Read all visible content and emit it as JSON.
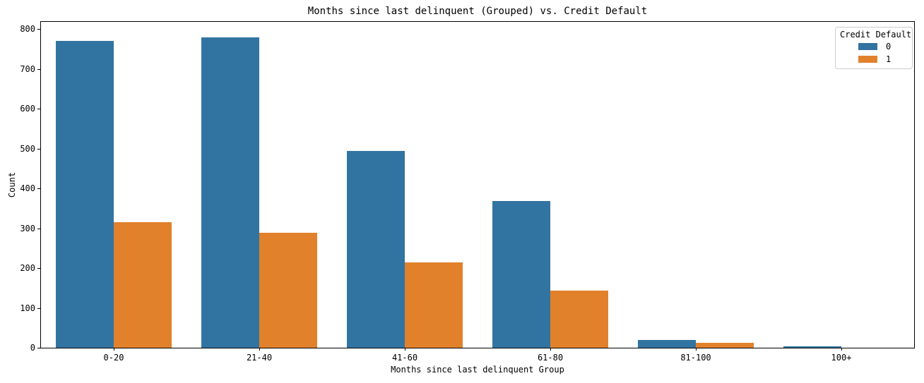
{
  "chart_data": {
    "type": "bar",
    "mode": "grouped",
    "title": "Months since last delinquent (Grouped) vs. Credit Default",
    "xlabel": "Months since last delinquent Group",
    "ylabel": "Count",
    "categories": [
      "0-20",
      "21-40",
      "41-60",
      "61-80",
      "81-100",
      "100+"
    ],
    "series": [
      {
        "name": "0",
        "color": "#3274a1",
        "values": [
          771,
          779,
          494,
          368,
          19,
          4
        ]
      },
      {
        "name": "1",
        "color": "#e1812c",
        "values": [
          315,
          289,
          215,
          144,
          13,
          0
        ]
      }
    ],
    "legend": {
      "title": "Credit Default",
      "position": "upper right"
    },
    "ylim": [
      0,
      818
    ],
    "yticks": [
      0,
      100,
      200,
      300,
      400,
      500,
      600,
      700,
      800
    ],
    "grid": false,
    "spine_color": "#000000",
    "background": "#ffffff"
  }
}
